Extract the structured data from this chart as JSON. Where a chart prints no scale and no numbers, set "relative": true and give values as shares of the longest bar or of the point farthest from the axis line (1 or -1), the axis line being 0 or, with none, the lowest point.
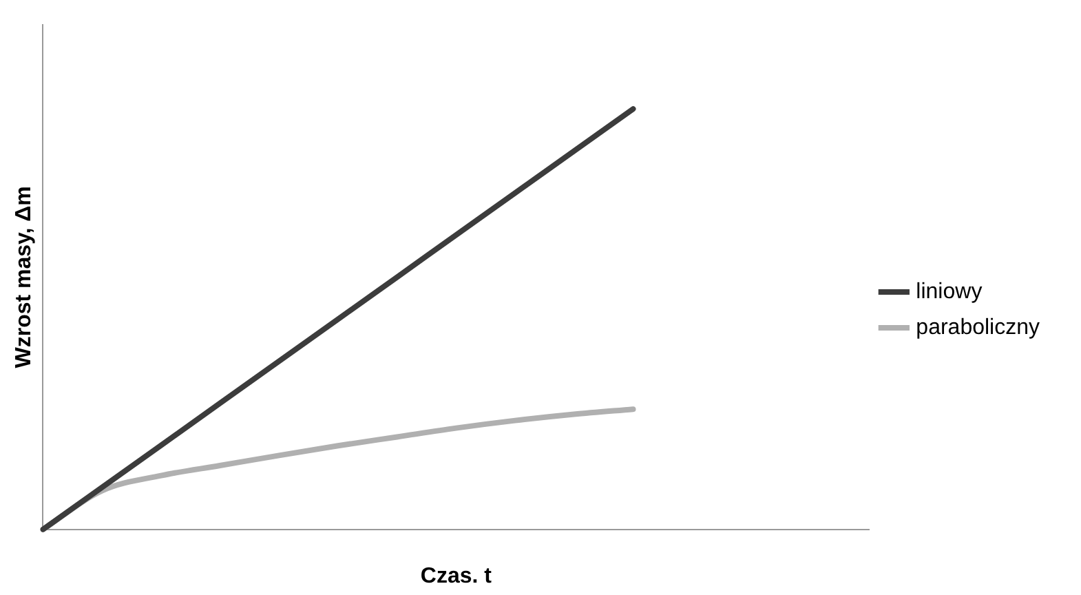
{
  "chart_data": {
    "type": "line",
    "relative": true,
    "xlabel": "Czas. t",
    "ylabel": "Wzrost masy, Δm",
    "categories": [
      null,
      null,
      null,
      null,
      null,
      null,
      null,
      null,
      null,
      null,
      null,
      null,
      null,
      null,
      null
    ],
    "series": [
      {
        "name": "liniowy",
        "color": "#3c3c3c",
        "values": [
          0,
          0.1,
          0.2,
          0.3,
          0.4,
          0.5,
          0.6,
          0.7,
          0.8,
          0.9,
          1,
          null,
          null,
          null,
          null
        ]
      },
      {
        "name": "paraboliczny",
        "color": "#b0b0b0",
        "values": [
          0,
          0.092,
          0.128,
          0.152,
          0.176,
          0.199,
          0.22,
          0.241,
          0.259,
          0.274,
          0.286,
          null,
          null,
          null,
          null
        ]
      }
    ],
    "legend": "right",
    "grid": false,
    "marker": "none",
    "line_style": "solid"
  }
}
